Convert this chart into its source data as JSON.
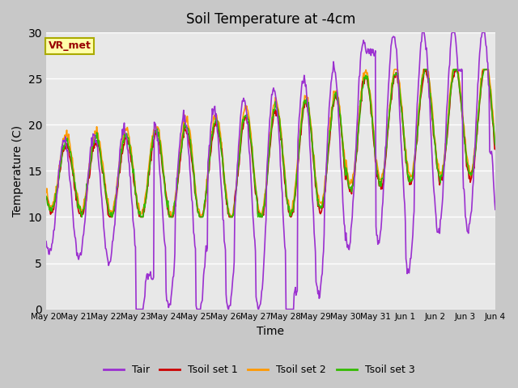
{
  "title": "Soil Temperature at -4cm",
  "xlabel": "Time",
  "ylabel": "Temperature (C)",
  "ylim": [
    0,
    30
  ],
  "xlim": [
    0,
    15
  ],
  "fig_bg": "#c8c8c8",
  "axes_bg": "#e8e8e8",
  "grid_color": "#ffffff",
  "legend_labels": [
    "Tair",
    "Tsoil set 1",
    "Tsoil set 2",
    "Tsoil set 3"
  ],
  "legend_colors": [
    "#9b30d0",
    "#cc0000",
    "#ff9900",
    "#33bb00"
  ],
  "line_width": 1.2,
  "xtick_labels": [
    "May 20",
    "May 21",
    "May 22",
    "May 23",
    "May 24",
    "May 25",
    "May 26",
    "May 27",
    "May 28",
    "May 29",
    "May 30",
    "May 31",
    "Jun 1",
    "Jun 2",
    "Jun 3",
    "Jun 4"
  ],
  "annotation_text": "VR_met",
  "annotation_box_color": "#ffffaa",
  "annotation_text_color": "#990000",
  "annotation_border_color": "#aaaa00"
}
